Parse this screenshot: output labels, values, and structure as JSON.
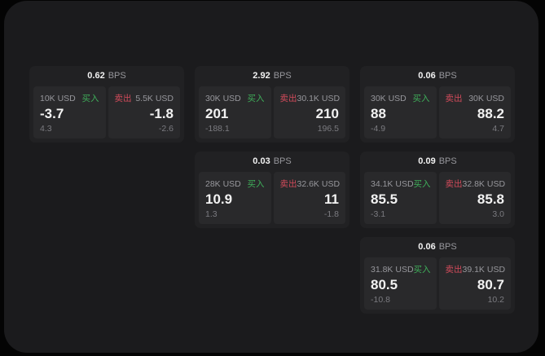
{
  "colors": {
    "surface_bg": "#1b1b1d",
    "card_bg": "#212123",
    "cell_bg": "#29292b",
    "buy_green": "#3fae5a",
    "sell_red": "#d24b5b",
    "text_primary": "#f2f2f2",
    "text_muted": "#97979c",
    "text_dim": "#7b7b80"
  },
  "labels": {
    "bps_unit": "BPS",
    "buy": "买入",
    "sell": "卖出"
  },
  "cards": [
    {
      "bps": "0.62",
      "buy": {
        "notional": "10K USD",
        "price": "-3.7",
        "delta": "4.3"
      },
      "sell": {
        "notional": "5.5K USD",
        "price": "-1.8",
        "delta": "-2.6"
      }
    },
    {
      "bps": "2.92",
      "buy": {
        "notional": "30K USD",
        "price": "201",
        "delta": "-188.1"
      },
      "sell": {
        "notional": "30.1K USD",
        "price": "210",
        "delta": "196.5"
      }
    },
    {
      "bps": "0.06",
      "buy": {
        "notional": "30K USD",
        "price": "88",
        "delta": "-4.9"
      },
      "sell": {
        "notional": "30K USD",
        "price": "88.2",
        "delta": "4.7"
      }
    },
    {
      "bps": "0.03",
      "buy": {
        "notional": "28K USD",
        "price": "10.9",
        "delta": "1.3"
      },
      "sell": {
        "notional": "32.6K USD",
        "price": "11",
        "delta": "-1.8"
      }
    },
    {
      "bps": "0.09",
      "buy": {
        "notional": "34.1K USD",
        "price": "85.5",
        "delta": "-3.1"
      },
      "sell": {
        "notional": "32.8K USD",
        "price": "85.8",
        "delta": "3.0"
      }
    },
    {
      "bps": "0.06",
      "buy": {
        "notional": "31.8K USD",
        "price": "80.5",
        "delta": "-10.8"
      },
      "sell": {
        "notional": "39.1K USD",
        "price": "80.7",
        "delta": "10.2"
      }
    }
  ]
}
